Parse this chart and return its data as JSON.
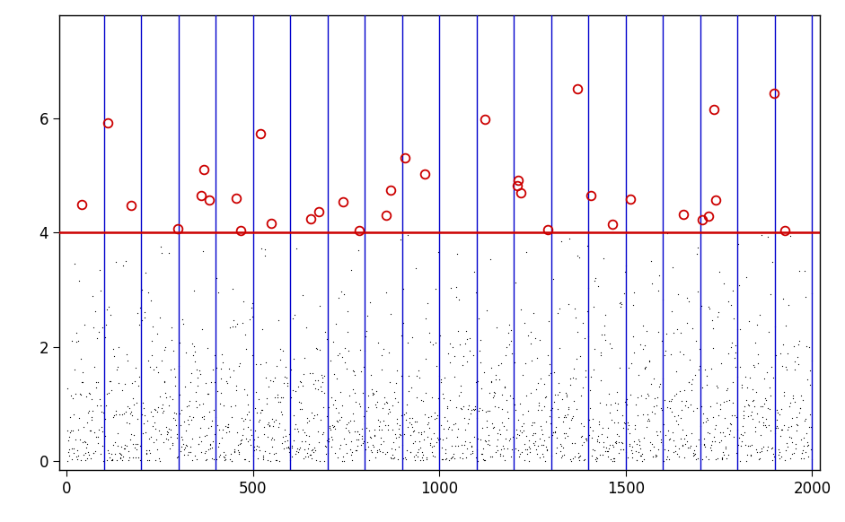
{
  "n_points": 2000,
  "threshold": 4.0,
  "block_size": 100,
  "n_blocks": 20,
  "xlim": [
    -20,
    2020
  ],
  "ylim": [
    -0.15,
    7.8
  ],
  "yticks": [
    0,
    2,
    4,
    6
  ],
  "xticks": [
    0,
    500,
    1000,
    1500,
    2000
  ],
  "threshold_color": "#cc0000",
  "vline_color": "#0000cc",
  "circle_color": "#cc0000",
  "dot_color": "#000000",
  "threshold_lw": 1.8,
  "vline_lw": 1.0,
  "random_seed": 1,
  "scale": 1.0,
  "background_color": "#ffffff",
  "figwidth": 9.41,
  "figheight": 5.82,
  "dpi": 100
}
